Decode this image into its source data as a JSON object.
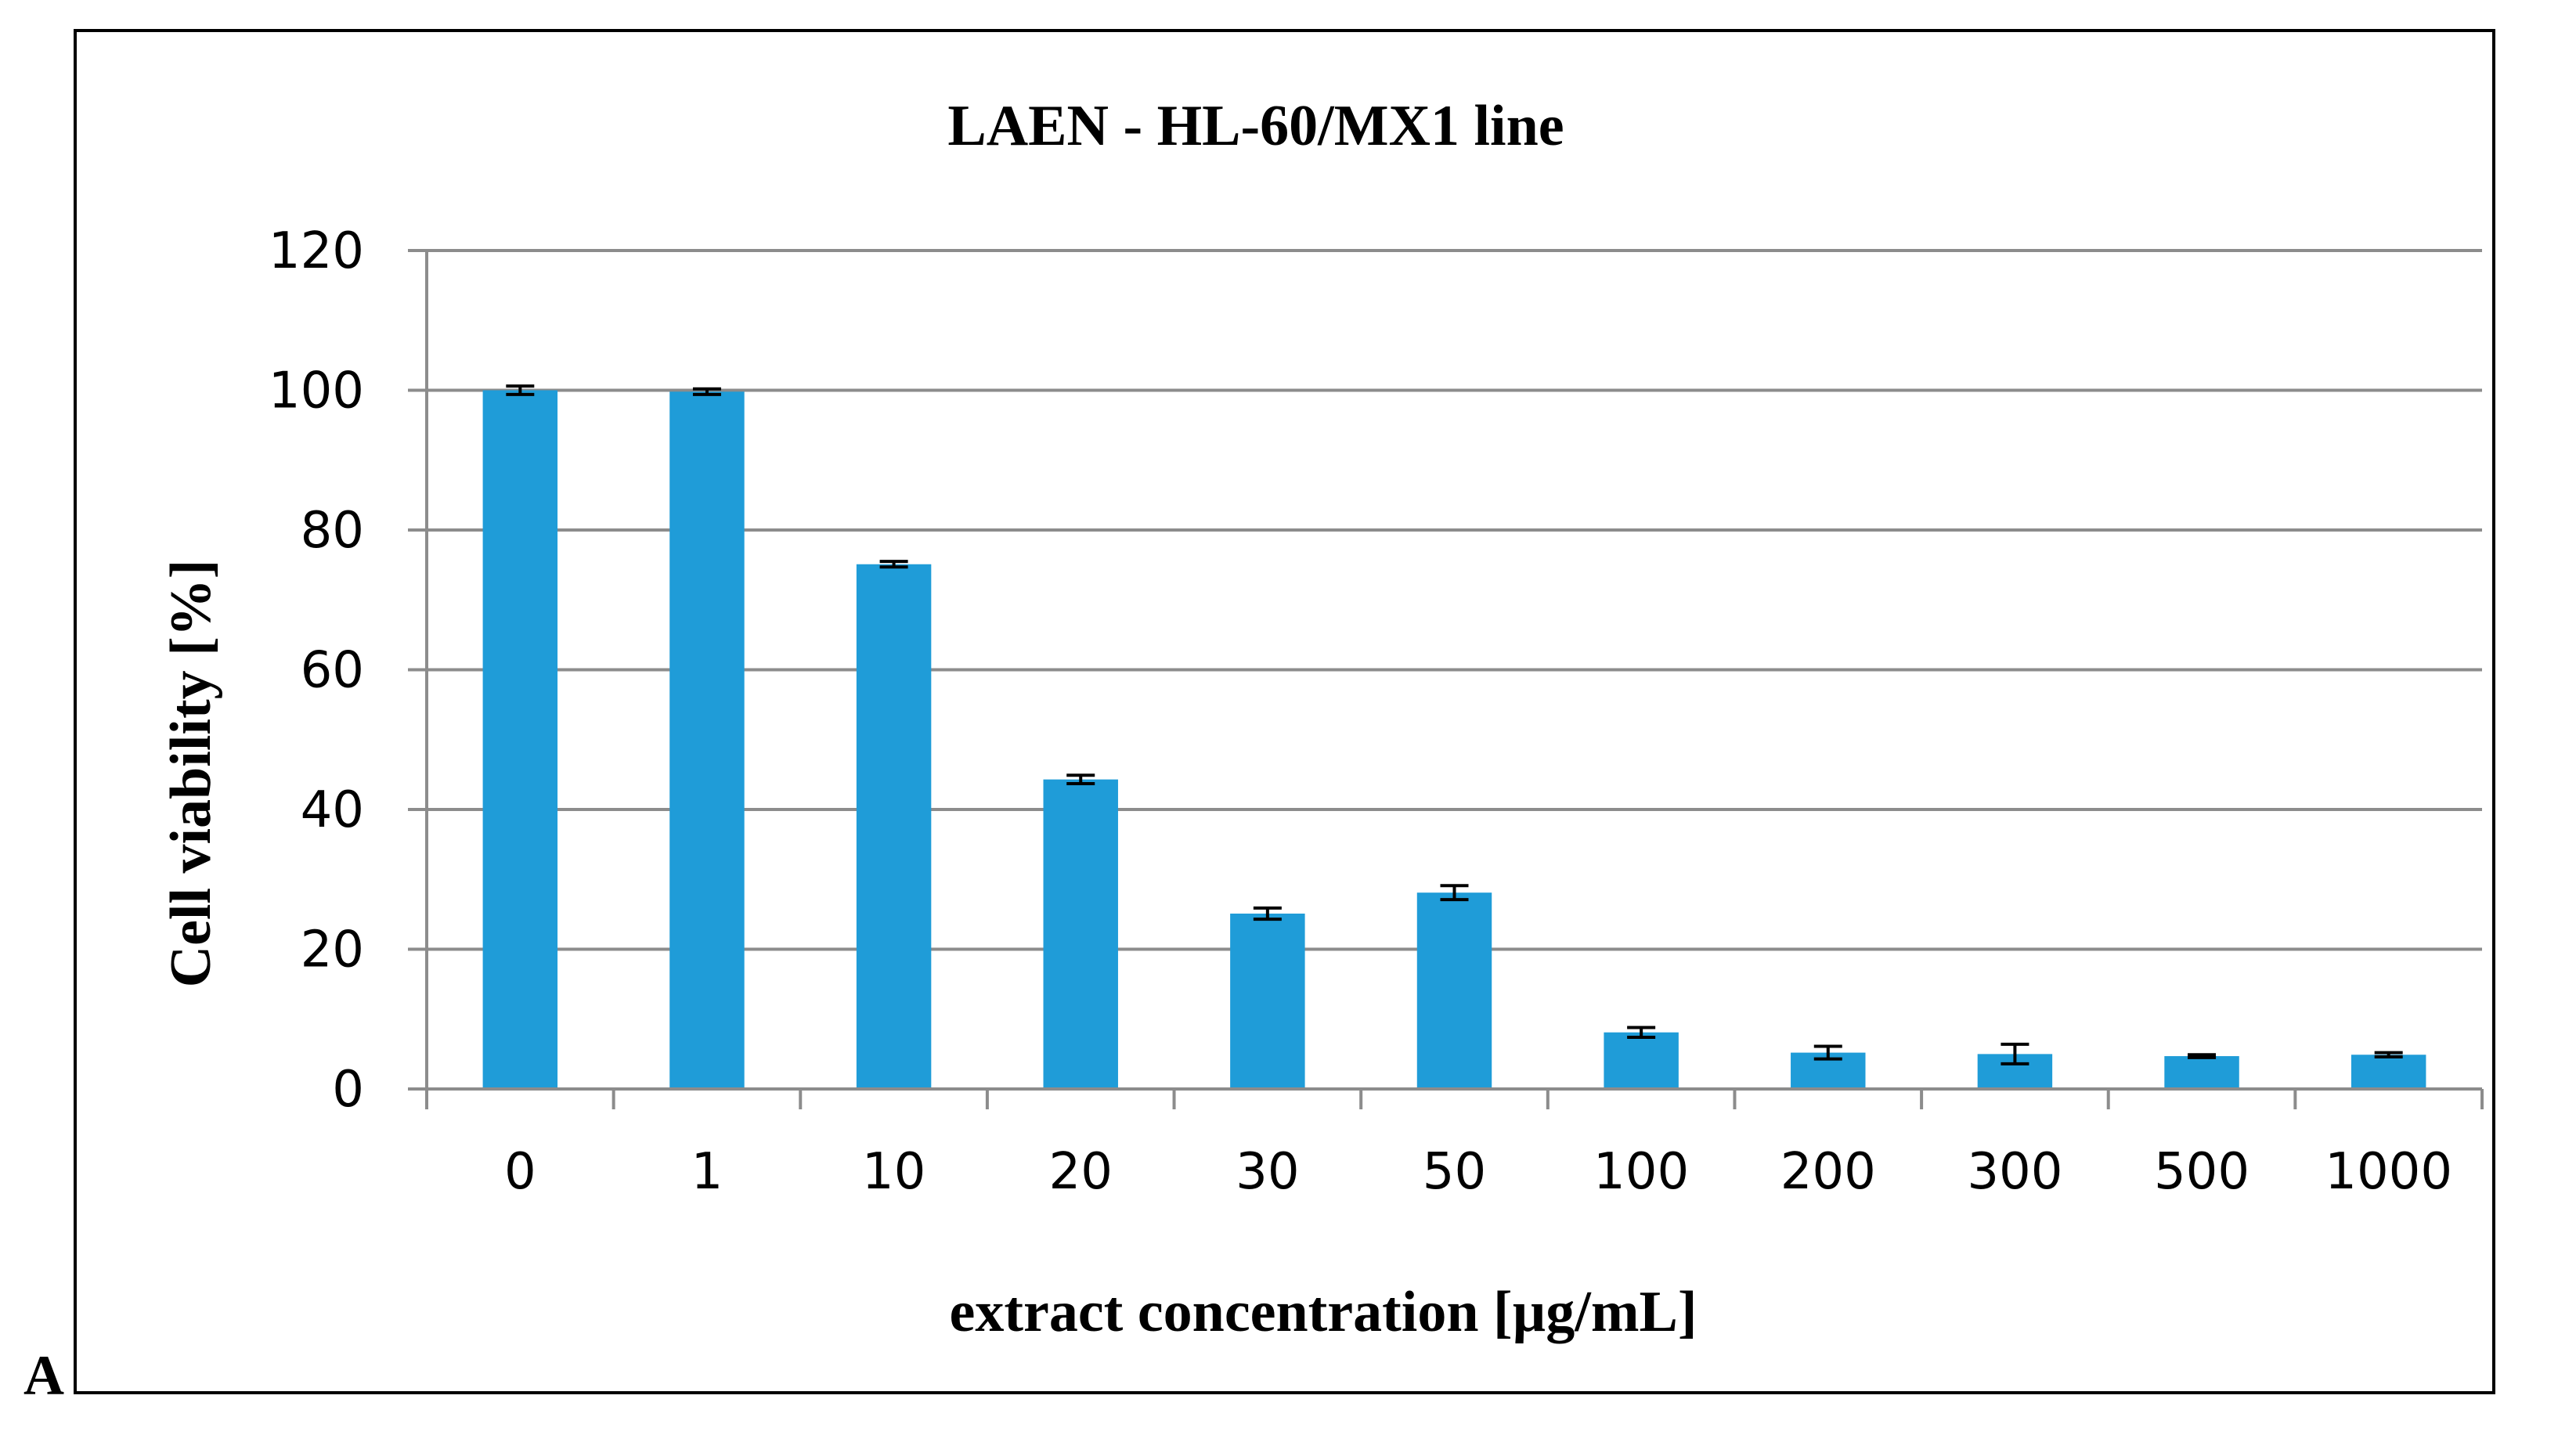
{
  "panel_label": "A",
  "chart_data": {
    "type": "bar",
    "title": "LAEN - HL-60/MX1 line",
    "xlabel": "extract concentration [µg/mL]",
    "ylabel": "Cell viability [%]",
    "categories": [
      "0",
      "1",
      "10",
      "20",
      "30",
      "50",
      "100",
      "200",
      "300",
      "500",
      "1000"
    ],
    "values": [
      100,
      99.8,
      75.1,
      44.3,
      25.1,
      28.1,
      8.1,
      5.2,
      5.0,
      4.7,
      4.9
    ],
    "errors": [
      0.6,
      0.4,
      0.4,
      0.6,
      0.8,
      1.0,
      0.7,
      0.9,
      1.4,
      0.2,
      0.3
    ],
    "ylim": [
      0,
      120
    ],
    "yticks": [
      0,
      20,
      40,
      60,
      80,
      100,
      120
    ],
    "grid": true,
    "legend": "none",
    "colors": {
      "bar": "#1f9cd8",
      "grid": "#8c8c8c",
      "axis": "#8c8c8c",
      "error_bar": "#000000",
      "text": "#000000"
    }
  }
}
